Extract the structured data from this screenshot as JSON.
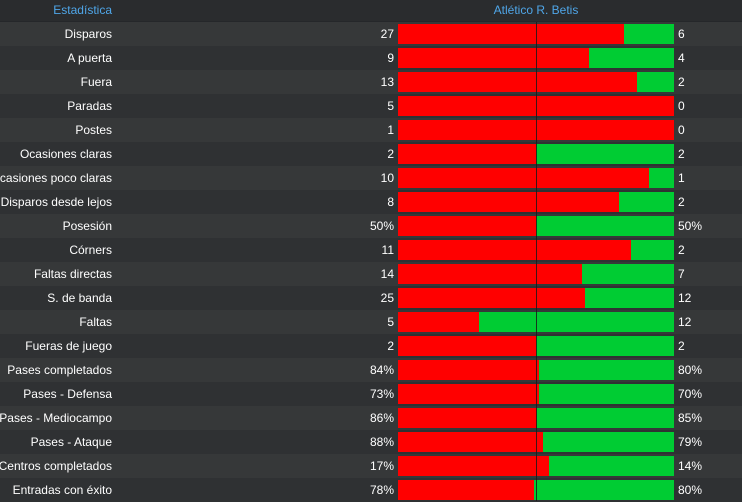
{
  "header": {
    "stat_title": "Estadística",
    "team_name": "Atlético R. Betis"
  },
  "colors": {
    "home_bar": "#ff0000",
    "away_bar": "#00cc33",
    "header_text": "#4fa6e8"
  },
  "stats": [
    {
      "label": "Disparos",
      "home": "27",
      "away": "6",
      "home_share": 0.818
    },
    {
      "label": "A puerta",
      "home": "9",
      "away": "4",
      "home_share": 0.692
    },
    {
      "label": "Fuera",
      "home": "13",
      "away": "2",
      "home_share": 0.867
    },
    {
      "label": "Paradas",
      "home": "5",
      "away": "0",
      "home_share": 1.0
    },
    {
      "label": "Postes",
      "home": "1",
      "away": "0",
      "home_share": 1.0
    },
    {
      "label": "Ocasiones claras",
      "home": "2",
      "away": "2",
      "home_share": 0.5
    },
    {
      "label": "Ocasiones poco claras",
      "home": "10",
      "away": "1",
      "home_share": 0.909
    },
    {
      "label": "Disparos desde lejos",
      "home": "8",
      "away": "2",
      "home_share": 0.8
    },
    {
      "label": "Posesión",
      "home": "50%",
      "away": "50%",
      "home_share": 0.5
    },
    {
      "label": "Córners",
      "home": "11",
      "away": "2",
      "home_share": 0.846
    },
    {
      "label": "Faltas directas",
      "home": "14",
      "away": "7",
      "home_share": 0.667
    },
    {
      "label": "S. de banda",
      "home": "25",
      "away": "12",
      "home_share": 0.676
    },
    {
      "label": "Faltas",
      "home": "5",
      "away": "12",
      "home_share": 0.294
    },
    {
      "label": "Fueras de juego",
      "home": "2",
      "away": "2",
      "home_share": 0.5
    },
    {
      "label": "Pases completados",
      "home": "84%",
      "away": "80%",
      "home_share": 0.512
    },
    {
      "label": "Pases - Defensa",
      "home": "73%",
      "away": "70%",
      "home_share": 0.51
    },
    {
      "label": "Pases - Mediocampo",
      "home": "86%",
      "away": "85%",
      "home_share": 0.503
    },
    {
      "label": "Pases - Ataque",
      "home": "88%",
      "away": "79%",
      "home_share": 0.527
    },
    {
      "label": "Centros completados",
      "home": "17%",
      "away": "14%",
      "home_share": 0.548
    },
    {
      "label": "Entradas con éxito",
      "home": "78%",
      "away": "80%",
      "home_share": 0.494
    }
  ]
}
